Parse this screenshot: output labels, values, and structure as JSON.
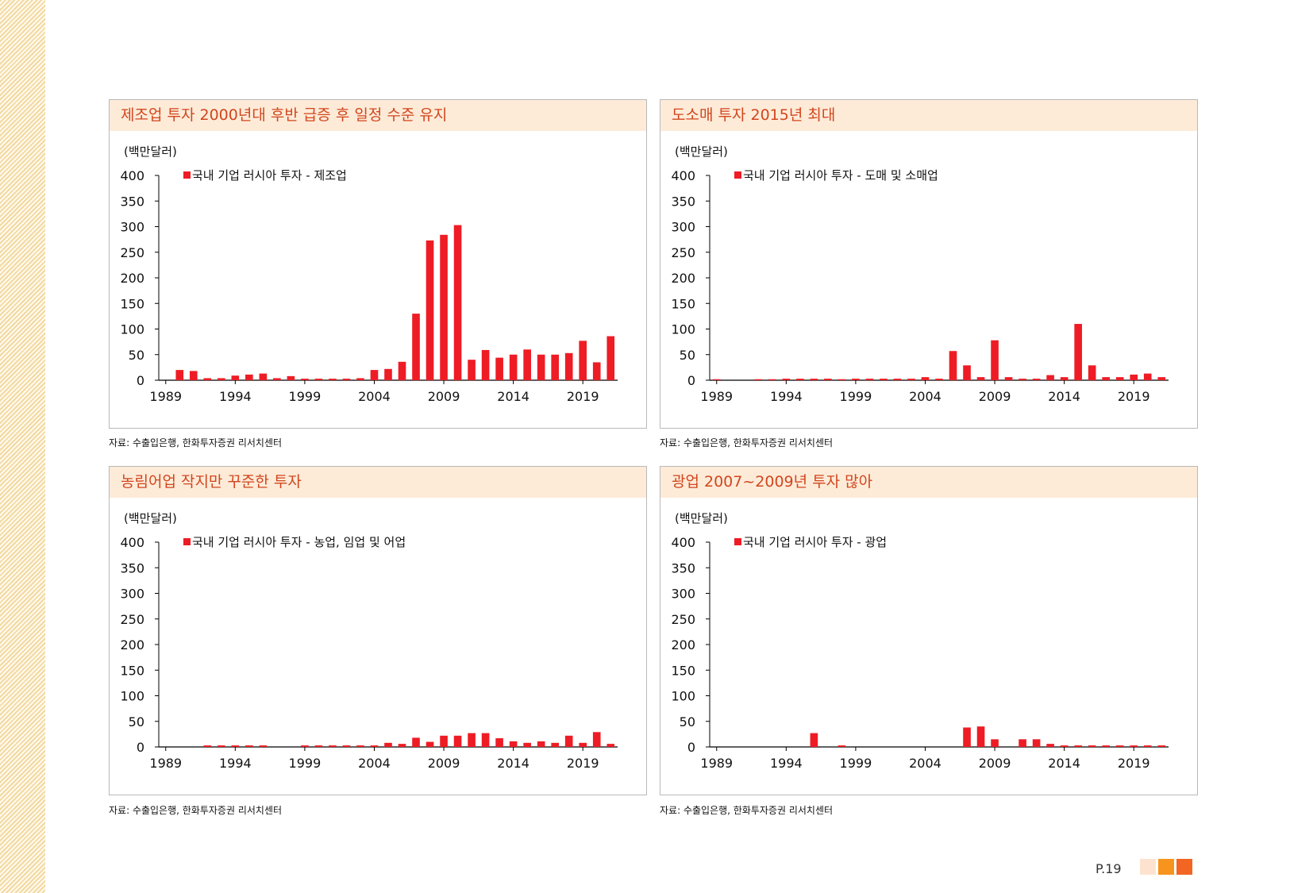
{
  "page": {
    "number": "P.19",
    "accent_colors": [
      "#fde3cf",
      "#f7941d",
      "#f26522"
    ]
  },
  "panels": [
    {
      "title": "제조업 투자 2000년대 후반 급증 후 일정 수준 유지",
      "source": "자료: 수출입은행, 한화투자증권 리서치센터"
    },
    {
      "title": "도소매 투자 2015년 최대",
      "source": "자료: 수출입은행, 한화투자증권 리서치센터"
    },
    {
      "title": "농림어업 작지만 꾸준한 투자",
      "source": "자료: 수출입은행, 한화투자증권 리서치센터"
    },
    {
      "title": "광업 2007~2009년 투자 많아",
      "source": "자료: 수출입은행, 한화투자증권 리서치센터"
    }
  ],
  "chart_data": [
    {
      "type": "bar",
      "ylabel": "(백만달러)",
      "ylim": [
        0,
        400
      ],
      "yticks": [
        0,
        50,
        100,
        150,
        200,
        250,
        300,
        350,
        400
      ],
      "x_start": 1989,
      "x_end": 2021,
      "xticks": [
        1989,
        1994,
        1999,
        2004,
        2009,
        2014,
        2019
      ],
      "legend": "국내 기업 러시아 투자 -  제조업",
      "color": "#ee1c25",
      "x": [
        1989,
        1990,
        1991,
        1992,
        1993,
        1994,
        1995,
        1996,
        1997,
        1998,
        1999,
        2000,
        2001,
        2002,
        2003,
        2004,
        2005,
        2006,
        2007,
        2008,
        2009,
        2010,
        2011,
        2012,
        2013,
        2014,
        2015,
        2016,
        2017,
        2018,
        2019,
        2020,
        2021
      ],
      "values": [
        0,
        20,
        18,
        4,
        4,
        9,
        11,
        13,
        4,
        8,
        3,
        3,
        3,
        3,
        4,
        20,
        22,
        36,
        130,
        273,
        284,
        303,
        40,
        59,
        44,
        50,
        60,
        50,
        50,
        53,
        77,
        35,
        86
      ]
    },
    {
      "type": "bar",
      "ylabel": "(백만달러)",
      "ylim": [
        0,
        400
      ],
      "yticks": [
        0,
        50,
        100,
        150,
        200,
        250,
        300,
        350,
        400
      ],
      "x_start": 1989,
      "x_end": 2021,
      "xticks": [
        1989,
        1994,
        1999,
        2004,
        2009,
        2014,
        2019
      ],
      "legend": "국내 기업 러시아 투자 -  도매 및 소매업",
      "color": "#ee1c25",
      "x": [
        1989,
        1990,
        1991,
        1992,
        1993,
        1994,
        1995,
        1996,
        1997,
        1998,
        1999,
        2000,
        2001,
        2002,
        2003,
        2004,
        2005,
        2006,
        2007,
        2008,
        2009,
        2010,
        2011,
        2012,
        2013,
        2014,
        2015,
        2016,
        2017,
        2018,
        2019,
        2020,
        2021
      ],
      "values": [
        2,
        0,
        0,
        2,
        2,
        3,
        3,
        3,
        3,
        2,
        3,
        3,
        3,
        3,
        3,
        6,
        3,
        57,
        29,
        6,
        78,
        6,
        3,
        3,
        10,
        6,
        110,
        29,
        6,
        6,
        11,
        13,
        6
      ]
    },
    {
      "type": "bar",
      "ylabel": "(백만달러)",
      "ylim": [
        0,
        400
      ],
      "yticks": [
        0,
        50,
        100,
        150,
        200,
        250,
        300,
        350,
        400
      ],
      "x_start": 1989,
      "x_end": 2021,
      "xticks": [
        1989,
        1994,
        1999,
        2004,
        2009,
        2014,
        2019
      ],
      "legend": "국내 기업 러시아 투자 -  농업, 임업 및 어업",
      "color": "#ee1c25",
      "x": [
        1989,
        1990,
        1991,
        1992,
        1993,
        1994,
        1995,
        1996,
        1997,
        1998,
        1999,
        2000,
        2001,
        2002,
        2003,
        2004,
        2005,
        2006,
        2007,
        2008,
        2009,
        2010,
        2011,
        2012,
        2013,
        2014,
        2015,
        2016,
        2017,
        2018,
        2019,
        2020,
        2021
      ],
      "values": [
        0,
        0,
        0,
        3,
        3,
        3,
        3,
        3,
        0,
        0,
        3,
        3,
        3,
        3,
        3,
        3,
        8,
        6,
        18,
        10,
        22,
        22,
        27,
        27,
        17,
        11,
        8,
        11,
        8,
        22,
        8,
        29,
        6
      ]
    },
    {
      "type": "bar",
      "ylabel": "(백만달러)",
      "ylim": [
        0,
        400
      ],
      "yticks": [
        0,
        50,
        100,
        150,
        200,
        250,
        300,
        350,
        400
      ],
      "x_start": 1989,
      "x_end": 2021,
      "xticks": [
        1989,
        1994,
        1999,
        2004,
        2009,
        2014,
        2019
      ],
      "legend": "국내 기업 러시아 투자 -  광업",
      "color": "#ee1c25",
      "x": [
        1989,
        1990,
        1991,
        1992,
        1993,
        1994,
        1995,
        1996,
        1997,
        1998,
        1999,
        2000,
        2001,
        2002,
        2003,
        2004,
        2005,
        2006,
        2007,
        2008,
        2009,
        2010,
        2011,
        2012,
        2013,
        2014,
        2015,
        2016,
        2017,
        2018,
        2019,
        2020,
        2021
      ],
      "values": [
        0,
        0,
        0,
        0,
        0,
        0,
        0,
        27,
        0,
        3,
        0,
        0,
        0,
        0,
        0,
        0,
        0,
        0,
        38,
        40,
        15,
        0,
        15,
        15,
        6,
        3,
        3,
        3,
        3,
        3,
        3,
        3,
        3
      ]
    }
  ]
}
